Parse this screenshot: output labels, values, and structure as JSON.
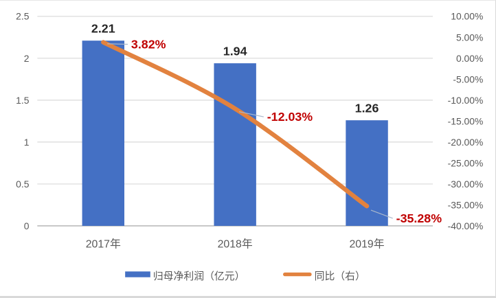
{
  "chart_data": {
    "type": "combo_bar_line",
    "title": "",
    "categories": [
      "2017年",
      "2018年",
      "2019年"
    ],
    "series": [
      {
        "name": "归母净利润（亿元）",
        "type": "bar",
        "axis": "left",
        "values": [
          2.21,
          1.94,
          1.26
        ],
        "data_labels": [
          "2.21",
          "1.94",
          "1.26"
        ]
      },
      {
        "name": "同比（右）",
        "type": "line",
        "axis": "right",
        "values": [
          3.82,
          -12.03,
          -35.28
        ],
        "data_labels": [
          "3.82%",
          "-12.03%",
          "-35.28%"
        ]
      }
    ],
    "left_axis": {
      "min": 0,
      "max": 2.5,
      "step": 0.5,
      "tick_labels": [
        "2.5",
        "2",
        "1.5",
        "1",
        "0.5",
        "0"
      ]
    },
    "right_axis": {
      "min": -40,
      "max": 10,
      "step": 5,
      "tick_labels": [
        "10.00%",
        "5.00%",
        "0.00%",
        "-5.00%",
        "-10.00%",
        "-15.00%",
        "-20.00%",
        "-25.00%",
        "-30.00%",
        "-35.00%",
        "-40.00%"
      ]
    },
    "grid": true,
    "legend_position": "bottom"
  },
  "colors": {
    "bar": "#4470C4",
    "line": "#E2823F",
    "bar_data_label": "#262626",
    "line_data_label": "#C00000",
    "axis_text": "#595959",
    "gridline": "#D9D9D9",
    "axis_line": "#B0B0B0",
    "leader_line": "#AAB8CC",
    "background": "#FFFFFF"
  }
}
